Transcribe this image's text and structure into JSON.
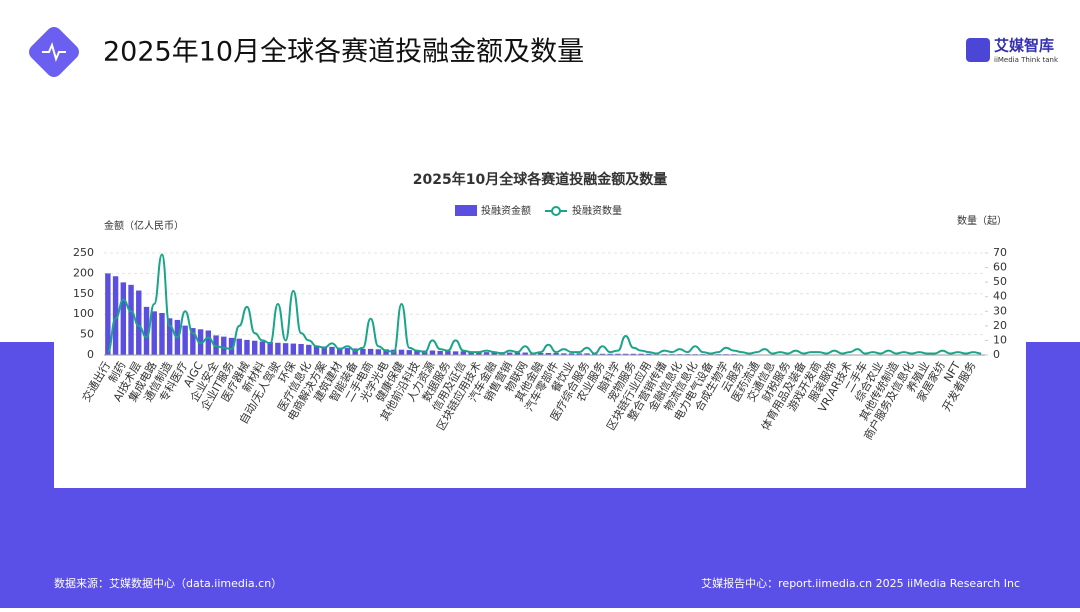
{
  "header": {
    "title": "2025年10月全球各赛道投融金额及数量",
    "logo": "艾媒智库",
    "logo_sub": "iiMedia Think tank"
  },
  "footer": {
    "source": "数据来源：艾媒数据中心（data.iimedia.cn）",
    "report": "艾媒报告中心：report.iimedia.cn   2025 iiMedia Research Inc"
  },
  "chart_data": {
    "type": "bar-line",
    "title": "2025年10月全球各赛道投融金额及数量",
    "y_label": "金额（亿人民币）",
    "y2_label": "数量（起）",
    "categories": [
      "交通出行",
      null,
      "制药",
      null,
      "AI技术层",
      null,
      "集成电路",
      null,
      "通信制造",
      null,
      "专科医疗",
      null,
      "AIGC",
      null,
      "企业安全",
      null,
      "企业IT服务",
      null,
      "医疗器械",
      null,
      "新材料",
      null,
      "自动/无人驾驶",
      null,
      "环保",
      null,
      "医疗信息化",
      null,
      "电商解决方案",
      null,
      "建筑建材",
      null,
      "智能装备",
      null,
      "二手电商",
      null,
      "光学光电",
      null,
      "健康保健",
      null,
      "其他前沿科技",
      null,
      "人力资源",
      null,
      "数据服务",
      null,
      "信用及征信",
      null,
      "区块链应用技术",
      null,
      "汽车金融",
      null,
      "销售营销",
      null,
      "物联网",
      null,
      "其他金融",
      null,
      "汽车零部件",
      null,
      "餐饮业",
      null,
      "医疗综合服务",
      null,
      "农业服务",
      null,
      "脑科学",
      null,
      "宠物服务",
      null,
      "区块链行业应用",
      null,
      "整合营销传播",
      null,
      "金融信息化",
      null,
      "物流信息化",
      null,
      "电力电气设备",
      null,
      "合成生物学",
      null,
      "云服务",
      null,
      "医药流通",
      null,
      "交通信息",
      null,
      "财税服务",
      null,
      "体育用品及装备",
      null,
      "游戏开发商",
      null,
      "服装服饰",
      null,
      "VR/AR技术",
      null,
      "二手车",
      null,
      "综合农业",
      null,
      "其他传统制造",
      null,
      "商户服务及信息化",
      null,
      "养殖业",
      null,
      "家居家纺",
      null,
      "NFT",
      null,
      "开发者服务",
      null
    ],
    "series": [
      {
        "name": "投融资金额",
        "color": "#5a4fde",
        "values": [
          200,
          193,
          178,
          172,
          158,
          118,
          107,
          103,
          90,
          86,
          72,
          66,
          63,
          60,
          48,
          45,
          42,
          40,
          37,
          35,
          33,
          32,
          30,
          29,
          28,
          27,
          25,
          23,
          21,
          20,
          18,
          17,
          16,
          15,
          15,
          14,
          14,
          13,
          13,
          12,
          12,
          11,
          11,
          10,
          10,
          9,
          9,
          8,
          8,
          7,
          7,
          7,
          6,
          6,
          6,
          5,
          5,
          5,
          5,
          4,
          4,
          4,
          4,
          4,
          3,
          3,
          3,
          3,
          3,
          3,
          3,
          2,
          2,
          2,
          2,
          2,
          2,
          2,
          2,
          2,
          2,
          2,
          1,
          1,
          1,
          1,
          1,
          1,
          1,
          1,
          1,
          1,
          1,
          1,
          1,
          1,
          1,
          1,
          1,
          1,
          1,
          1,
          1,
          1,
          1,
          1,
          0.5,
          0.5,
          0.5,
          0.5,
          0.5,
          0.5,
          0.5,
          0.5
        ]
      },
      {
        "name": "投融资数量",
        "color": "#1aa589",
        "axis": "y2",
        "values": [
          2,
          25,
          38,
          30,
          20,
          12,
          35,
          69,
          20,
          12,
          30,
          15,
          8,
          12,
          6,
          5,
          4,
          20,
          33,
          15,
          10,
          8,
          35,
          10,
          44,
          15,
          10,
          6,
          5,
          8,
          4,
          6,
          3,
          5,
          25,
          6,
          3,
          2,
          35,
          5,
          3,
          2,
          10,
          4,
          3,
          10,
          3,
          2,
          2,
          3,
          2,
          1,
          3,
          2,
          6,
          1,
          2,
          7,
          2,
          4,
          2,
          2,
          5,
          1,
          6,
          2,
          3,
          13,
          5,
          3,
          2,
          1,
          3,
          2,
          4,
          2,
          6,
          2,
          1,
          2,
          5,
          3,
          2,
          1,
          2,
          4,
          1,
          2,
          1,
          3,
          1,
          2,
          2,
          1,
          3,
          1,
          2,
          4,
          1,
          2,
          1,
          3,
          1,
          2,
          1,
          2,
          1,
          1,
          3,
          1,
          2,
          1,
          2,
          1
        ]
      }
    ],
    "ylim": [
      0,
      250
    ],
    "yticks": [
      0,
      50,
      100,
      150,
      200,
      250
    ],
    "y2lim": [
      0,
      70
    ],
    "y2ticks": [
      0,
      10,
      20,
      30,
      40,
      50,
      60,
      70
    ],
    "grid": true
  }
}
